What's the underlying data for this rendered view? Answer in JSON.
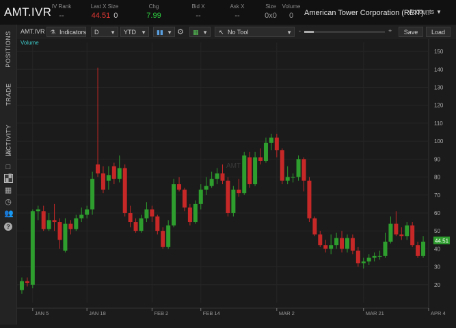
{
  "header": {
    "symbol": "AMT.IVR",
    "columns": [
      {
        "label": "IV Rank",
        "value": "--",
        "color": "#9a9a9a",
        "x": 90
      },
      {
        "label": "Last X Size",
        "value": "44.51",
        "value2": "0",
        "color": "#e53935",
        "x": 153
      },
      {
        "label": "Chg",
        "value": "7.99",
        "color": "#2ecc40",
        "x": 225
      },
      {
        "label": "Bid X",
        "value": "--",
        "color": "#9a9a9a",
        "x": 290
      },
      {
        "label": "Ask X",
        "value": "--",
        "color": "#9a9a9a",
        "x": 347
      },
      {
        "label": "Size",
        "value": "0x0",
        "color": "#9a9a9a",
        "x": 396
      },
      {
        "label": "Volume",
        "value": "0",
        "color": "#9a9a9a",
        "x": 426
      }
    ],
    "company": "American Tower Corporation (REIT)...",
    "accounts": "Accounts"
  },
  "sidebar": {
    "tabs": [
      "POSITIONS",
      "TRADE",
      "ACTIVITY"
    ],
    "icons": [
      "list-icon",
      "square-icon",
      "chart-icon",
      "grid-icon",
      "clock-icon",
      "people-icon",
      "help-icon"
    ]
  },
  "toolbar": {
    "symbol": "AMT.IVR",
    "indicators": "Indicators",
    "period": "D",
    "range": "YTD",
    "tool": "No Tool",
    "zoom_minus": "-",
    "zoom_plus": "+",
    "save": "Save",
    "load": "Load"
  },
  "chart": {
    "volume_label": "Volume",
    "watermark": "AMT",
    "last_price_tag": "44.51",
    "up_color": "#2e9e2e",
    "down_color": "#c62828"
  },
  "chart_data": {
    "type": "candlestick",
    "title": "",
    "ylim": [
      10,
      155
    ],
    "yticks": [
      20,
      30,
      40,
      50,
      60,
      70,
      80,
      90,
      100,
      110,
      120,
      130,
      140,
      150
    ],
    "xticks": [
      "JAN 5",
      "JAN 18",
      "FEB 2",
      "FEB 14",
      "MAR 2",
      "MAR 21",
      "APR 4",
      "APR 18"
    ],
    "xtick_index": [
      2,
      12,
      24,
      33,
      47,
      63,
      75,
      86
    ],
    "candles": [
      {
        "o": 17,
        "c": 22,
        "h": 24,
        "l": 15
      },
      {
        "o": 22,
        "c": 21,
        "h": 24,
        "l": 19
      },
      {
        "o": 20,
        "c": 61,
        "h": 62,
        "l": 18
      },
      {
        "o": 61,
        "c": 62,
        "h": 64,
        "l": 56
      },
      {
        "o": 61,
        "c": 51,
        "h": 64,
        "l": 50
      },
      {
        "o": 51,
        "c": 56,
        "h": 60,
        "l": 50
      },
      {
        "o": 56,
        "c": 55,
        "h": 65,
        "l": 50
      },
      {
        "o": 55,
        "c": 45,
        "h": 57,
        "l": 40
      },
      {
        "o": 39,
        "c": 54,
        "h": 57,
        "l": 38
      },
      {
        "o": 54,
        "c": 51,
        "h": 56,
        "l": 48
      },
      {
        "o": 51,
        "c": 57,
        "h": 59,
        "l": 50
      },
      {
        "o": 57,
        "c": 59,
        "h": 63,
        "l": 55
      },
      {
        "o": 59,
        "c": 62,
        "h": 64,
        "l": 57
      },
      {
        "o": 62,
        "c": 79,
        "h": 83,
        "l": 59
      },
      {
        "o": 87,
        "c": 82,
        "h": 141,
        "l": 80
      },
      {
        "o": 82,
        "c": 73,
        "h": 86,
        "l": 71
      },
      {
        "o": 78,
        "c": 81,
        "h": 86,
        "l": 73
      },
      {
        "o": 86,
        "c": 79,
        "h": 88,
        "l": 76
      },
      {
        "o": 79,
        "c": 85,
        "h": 92,
        "l": 77
      },
      {
        "o": 85,
        "c": 60,
        "h": 87,
        "l": 58
      },
      {
        "o": 60,
        "c": 55,
        "h": 64,
        "l": 52
      },
      {
        "o": 55,
        "c": 50,
        "h": 57,
        "l": 49
      },
      {
        "o": 50,
        "c": 57,
        "h": 59,
        "l": 49
      },
      {
        "o": 57,
        "c": 62,
        "h": 66,
        "l": 55
      },
      {
        "o": 62,
        "c": 58,
        "h": 64,
        "l": 55
      },
      {
        "o": 58,
        "c": 50,
        "h": 59,
        "l": 48
      },
      {
        "o": 50,
        "c": 41,
        "h": 52,
        "l": 40
      },
      {
        "o": 41,
        "c": 53,
        "h": 56,
        "l": 40
      },
      {
        "o": 53,
        "c": 76,
        "h": 79,
        "l": 52
      },
      {
        "o": 76,
        "c": 73,
        "h": 80,
        "l": 72
      },
      {
        "o": 73,
        "c": 63,
        "h": 74,
        "l": 61
      },
      {
        "o": 63,
        "c": 55,
        "h": 65,
        "l": 53
      },
      {
        "o": 55,
        "c": 65,
        "h": 67,
        "l": 54
      },
      {
        "o": 65,
        "c": 73,
        "h": 76,
        "l": 62
      },
      {
        "o": 73,
        "c": 75,
        "h": 80,
        "l": 70
      },
      {
        "o": 75,
        "c": 79,
        "h": 83,
        "l": 74
      },
      {
        "o": 79,
        "c": 82,
        "h": 85,
        "l": 76
      },
      {
        "o": 82,
        "c": 78,
        "h": 87,
        "l": 76
      },
      {
        "o": 78,
        "c": 60,
        "h": 80,
        "l": 58
      },
      {
        "o": 60,
        "c": 73,
        "h": 75,
        "l": 58
      },
      {
        "o": 73,
        "c": 71,
        "h": 79,
        "l": 69
      },
      {
        "o": 71,
        "c": 92,
        "h": 94,
        "l": 70
      },
      {
        "o": 91,
        "c": 76,
        "h": 94,
        "l": 74
      },
      {
        "o": 76,
        "c": 91,
        "h": 94,
        "l": 75
      },
      {
        "o": 91,
        "c": 89,
        "h": 96,
        "l": 87
      },
      {
        "o": 89,
        "c": 99,
        "h": 102,
        "l": 88
      },
      {
        "o": 99,
        "c": 102,
        "h": 104,
        "l": 95
      },
      {
        "o": 102,
        "c": 95,
        "h": 104,
        "l": 91
      },
      {
        "o": 95,
        "c": 78,
        "h": 96,
        "l": 76
      },
      {
        "o": 78,
        "c": 80,
        "h": 86,
        "l": 76
      },
      {
        "o": 80,
        "c": 80,
        "h": 82,
        "l": 77
      },
      {
        "o": 80,
        "c": 90,
        "h": 92,
        "l": 78
      },
      {
        "o": 90,
        "c": 78,
        "h": 91,
        "l": 72
      },
      {
        "o": 78,
        "c": 57,
        "h": 80,
        "l": 55
      },
      {
        "o": 57,
        "c": 48,
        "h": 58,
        "l": 47
      },
      {
        "o": 48,
        "c": 42,
        "h": 50,
        "l": 41
      },
      {
        "o": 42,
        "c": 40,
        "h": 45,
        "l": 38
      },
      {
        "o": 40,
        "c": 42,
        "h": 48,
        "l": 37
      },
      {
        "o": 42,
        "c": 46,
        "h": 49,
        "l": 40
      },
      {
        "o": 46,
        "c": 40,
        "h": 50,
        "l": 38
      },
      {
        "o": 40,
        "c": 46,
        "h": 48,
        "l": 38
      },
      {
        "o": 46,
        "c": 39,
        "h": 48,
        "l": 37
      },
      {
        "o": 39,
        "c": 32,
        "h": 41,
        "l": 30
      },
      {
        "o": 32,
        "c": 33,
        "h": 35,
        "l": 29
      },
      {
        "o": 33,
        "c": 35,
        "h": 37,
        "l": 31
      },
      {
        "o": 35,
        "c": 36,
        "h": 38,
        "l": 33
      },
      {
        "o": 36,
        "c": 36,
        "h": 39,
        "l": 34
      },
      {
        "o": 36,
        "c": 44,
        "h": 49,
        "l": 35
      },
      {
        "o": 44,
        "c": 54,
        "h": 58,
        "l": 43
      },
      {
        "o": 54,
        "c": 48,
        "h": 61,
        "l": 47
      },
      {
        "o": 48,
        "c": 47,
        "h": 52,
        "l": 45
      },
      {
        "o": 47,
        "c": 53,
        "h": 55,
        "l": 45
      },
      {
        "o": 53,
        "c": 42,
        "h": 55,
        "l": 41
      },
      {
        "o": 42,
        "c": 36,
        "h": 44,
        "l": 35
      },
      {
        "o": 36,
        "c": 44,
        "h": 47,
        "l": 35
      }
    ]
  }
}
